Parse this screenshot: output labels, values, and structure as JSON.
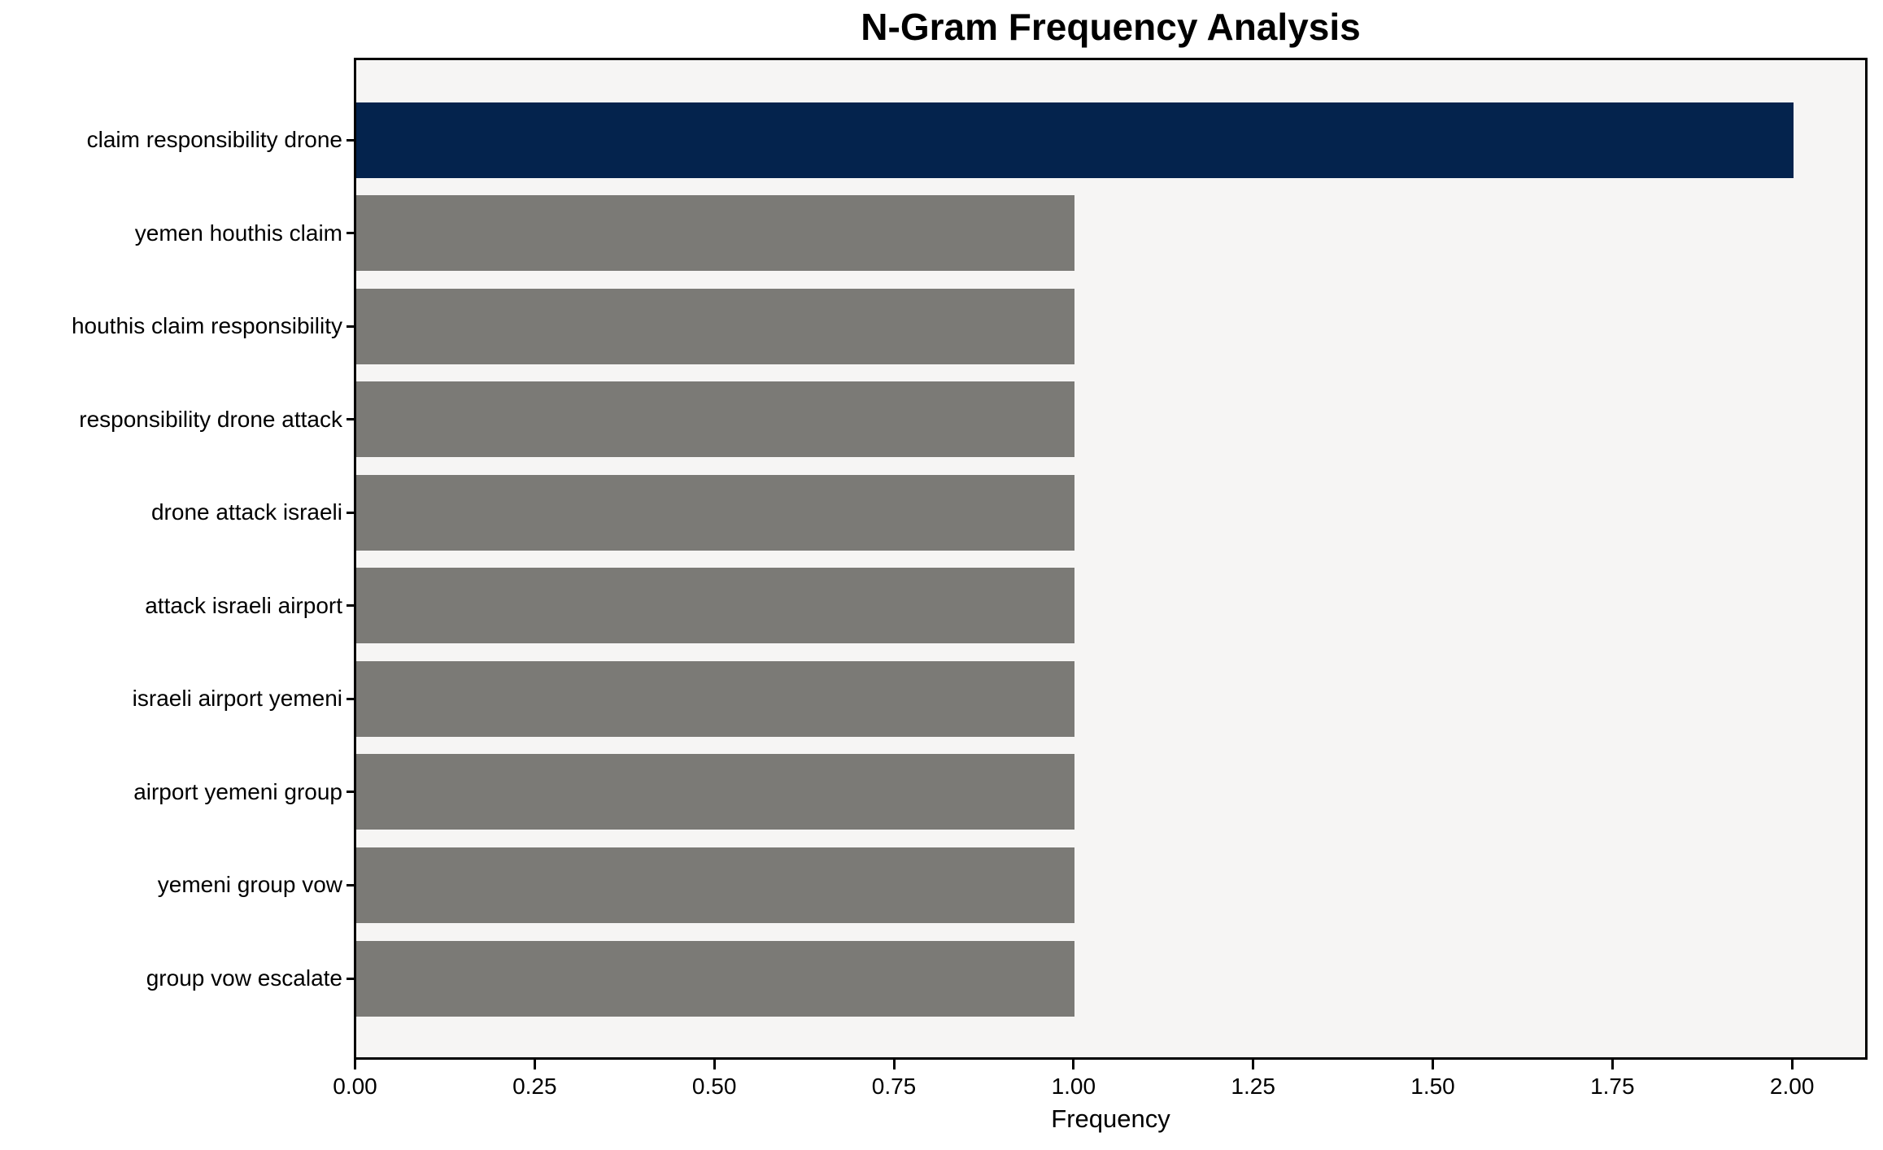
{
  "chart_data": {
    "type": "bar",
    "orientation": "horizontal",
    "title": "N-Gram Frequency Analysis",
    "xlabel": "Frequency",
    "ylabel": "",
    "categories": [
      "claim responsibility drone",
      "yemen houthis claim",
      "houthis claim responsibility",
      "responsibility drone attack",
      "drone attack israeli",
      "attack israeli airport",
      "israeli airport yemeni",
      "airport yemeni group",
      "yemeni group vow",
      "group vow escalate"
    ],
    "values": [
      2,
      1,
      1,
      1,
      1,
      1,
      1,
      1,
      1,
      1
    ],
    "bar_colors": [
      "#04234d",
      "#7b7a76",
      "#7b7a76",
      "#7b7a76",
      "#7b7a76",
      "#7b7a76",
      "#7b7a76",
      "#7b7a76",
      "#7b7a76",
      "#7b7a76"
    ],
    "xlim": [
      0,
      2.1
    ],
    "xticks": [
      "0.00",
      "0.25",
      "0.50",
      "0.75",
      "1.00",
      "1.25",
      "1.50",
      "1.75",
      "2.00"
    ],
    "xtick_values": [
      0,
      0.25,
      0.5,
      0.75,
      1.0,
      1.25,
      1.5,
      1.75,
      2.0
    ],
    "grid": false,
    "legend": null,
    "colors": {
      "highlight_bar": "#04234d",
      "default_bar": "#7b7a76",
      "plot_background": "#f6f5f4",
      "figure_background": "#ffffff",
      "spine": "#000000",
      "text": "#000000"
    }
  }
}
